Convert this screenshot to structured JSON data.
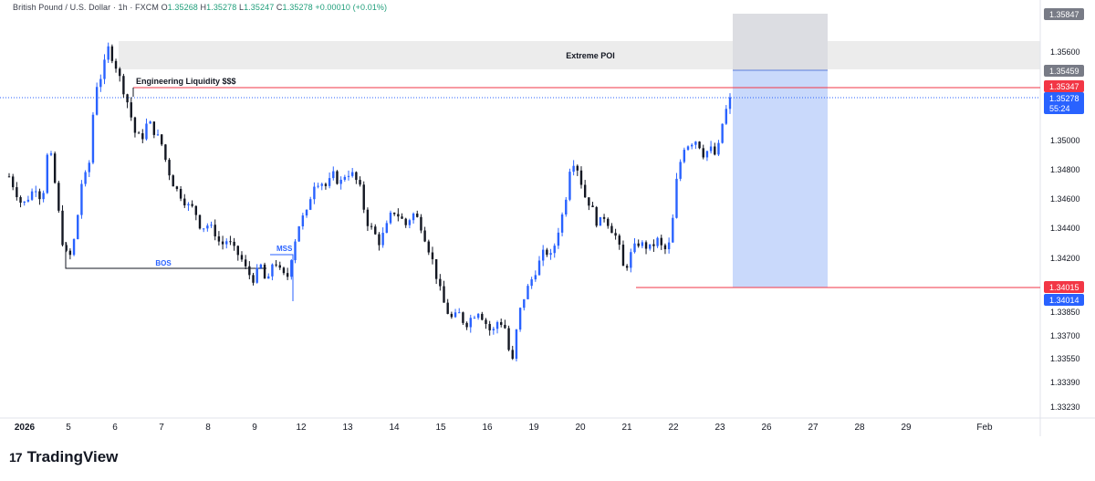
{
  "header": {
    "symbol": "British Pound / U.S. Dollar · 1h · FXCM",
    "o_label": "O",
    "o_value": "1.35268",
    "h_label": "H",
    "h_value": "1.35278",
    "l_label": "L",
    "l_value": "1.35247",
    "c_label": "C",
    "c_value": "1.35278",
    "change": "+0.00010 (+0.01%)"
  },
  "brand": {
    "logo_text": "17",
    "name": "TradingView"
  },
  "colors": {
    "up": "#2962ff",
    "down": "#131722",
    "text": "#131722",
    "red": "#f23645",
    "blue_label": "#2962ff",
    "grey_label": "#787b86",
    "poi_zone": "#ececec",
    "target_zone": "#c9d9fb",
    "upper_box": "#dcdde2"
  },
  "chart_data": {
    "type": "candlestick",
    "symbol": "GBPUSD",
    "timeframe": "1h",
    "x_ticks": [
      "2026",
      "5",
      "6",
      "7",
      "8",
      "9",
      "12",
      "13",
      "14",
      "15",
      "16",
      "19",
      "20",
      "21",
      "22",
      "23",
      "26",
      "27",
      "28",
      "29",
      "Feb"
    ],
    "y_ticks": [
      "1.35600",
      "1.35000",
      "1.34800",
      "1.34600",
      "1.34400",
      "1.34200",
      "1.33850",
      "1.33700",
      "1.33550",
      "1.33390",
      "1.33230"
    ],
    "price_labels": [
      {
        "text": "1.35847",
        "style": "grey"
      },
      {
        "text": "1.35459",
        "style": "grey"
      },
      {
        "text": "1.35347",
        "style": "red"
      },
      {
        "text": "1.35278",
        "style": "blue"
      },
      {
        "text": "55:24",
        "style": "blue"
      },
      {
        "text": "1.34015",
        "style": "red"
      },
      {
        "text": "1.34014",
        "style": "blue"
      }
    ],
    "price_path": [
      [
        0,
        1.3475
      ],
      [
        2,
        1.3455
      ],
      [
        4,
        1.3468
      ],
      [
        5,
        1.3458
      ],
      [
        6,
        1.3498
      ],
      [
        7,
        1.3468
      ],
      [
        8,
        1.3432
      ],
      [
        9,
        1.3417
      ],
      [
        10,
        1.3435
      ],
      [
        11,
        1.3472
      ],
      [
        12,
        1.3478
      ],
      [
        13,
        1.3535
      ],
      [
        14,
        1.3544
      ],
      [
        15,
        1.3562
      ],
      [
        16,
        1.3552
      ],
      [
        17,
        1.3538
      ],
      [
        18,
        1.3524
      ],
      [
        19,
        1.3505
      ],
      [
        20,
        1.35
      ],
      [
        21,
        1.3513
      ],
      [
        22,
        1.3505
      ],
      [
        23,
        1.3498
      ],
      [
        24,
        1.348
      ],
      [
        25,
        1.3468
      ],
      [
        26,
        1.3462
      ],
      [
        27,
        1.3455
      ],
      [
        28,
        1.3453
      ],
      [
        29,
        1.344
      ],
      [
        30,
        1.3442
      ],
      [
        31,
        1.3438
      ],
      [
        32,
        1.3428
      ],
      [
        33,
        1.3432
      ],
      [
        34,
        1.3425
      ],
      [
        35,
        1.342
      ],
      [
        36,
        1.341
      ],
      [
        37,
        1.3405
      ],
      [
        38,
        1.3415
      ],
      [
        39,
        1.34
      ],
      [
        40,
        1.342
      ],
      [
        41,
        1.341
      ],
      [
        42,
        1.3405
      ],
      [
        43,
        1.3428
      ],
      [
        44,
        1.3445
      ],
      [
        45,
        1.345
      ],
      [
        46,
        1.347
      ],
      [
        47,
        1.3472
      ],
      [
        48,
        1.3468
      ],
      [
        49,
        1.3476
      ],
      [
        50,
        1.347
      ],
      [
        51,
        1.3478
      ],
      [
        52,
        1.3476
      ],
      [
        53,
        1.3468
      ],
      [
        54,
        1.3445
      ],
      [
        55,
        1.3438
      ],
      [
        56,
        1.343
      ],
      [
        57,
        1.344
      ],
      [
        58,
        1.3452
      ],
      [
        59,
        1.3448
      ],
      [
        60,
        1.3442
      ],
      [
        61,
        1.345
      ],
      [
        62,
        1.3445
      ],
      [
        63,
        1.3432
      ],
      [
        64,
        1.3418
      ],
      [
        65,
        1.34
      ],
      [
        66,
        1.3385
      ],
      [
        67,
        1.3378
      ],
      [
        68,
        1.3382
      ],
      [
        69,
        1.3374
      ],
      [
        70,
        1.338
      ],
      [
        71,
        1.3384
      ],
      [
        72,
        1.3376
      ],
      [
        73,
        1.3368
      ],
      [
        74,
        1.3378
      ],
      [
        75,
        1.3372
      ],
      [
        76,
        1.3345
      ],
      [
        77,
        1.338
      ],
      [
        78,
        1.3395
      ],
      [
        79,
        1.3405
      ],
      [
        80,
        1.3415
      ],
      [
        81,
        1.3425
      ],
      [
        82,
        1.342
      ],
      [
        83,
        1.3438
      ],
      [
        84,
        1.3455
      ],
      [
        85,
        1.3488
      ],
      [
        86,
        1.348
      ],
      [
        87,
        1.3462
      ],
      [
        88,
        1.3455
      ],
      [
        89,
        1.3442
      ],
      [
        90,
        1.3448
      ],
      [
        91,
        1.344
      ],
      [
        92,
        1.3432
      ],
      [
        93,
        1.341
      ],
      [
        94,
        1.3422
      ],
      [
        95,
        1.343
      ],
      [
        96,
        1.3428
      ],
      [
        97,
        1.3426
      ],
      [
        98,
        1.3432
      ],
      [
        99,
        1.3424
      ],
      [
        100,
        1.343
      ],
      [
        101,
        1.3475
      ],
      [
        102,
        1.3495
      ],
      [
        103,
        1.3498
      ],
      [
        104,
        1.35
      ],
      [
        105,
        1.349
      ],
      [
        106,
        1.3494
      ],
      [
        107,
        1.3488
      ],
      [
        108,
        1.3515
      ],
      [
        109,
        1.3527
      ]
    ],
    "price_path_x_unit": "bar index"
  },
  "annotations": {
    "extreme_poi": "Extreme POI",
    "engineering_liquidity": "Engineering Liquidity $$$",
    "bos": "BOS",
    "mss": "MSS"
  }
}
